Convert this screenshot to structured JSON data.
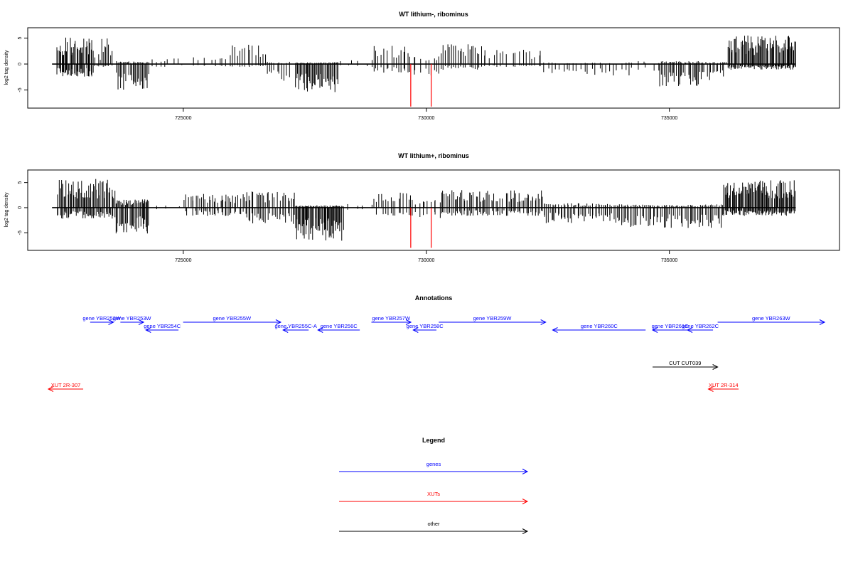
{
  "chart_data": [
    {
      "type": "bar",
      "title": "WT lithium-, ribominus",
      "xlabel": "",
      "ylabel": "log2 tag density",
      "xlim": [
        721800,
        738500
      ],
      "ylim": [
        -8.5,
        7.0
      ],
      "xticks": [
        725000,
        730000,
        735000
      ],
      "yticks": [
        -5,
        0,
        5
      ],
      "grid": false,
      "baseline": {
        "from": 722300,
        "to": 737600
      },
      "highlight_color": "#ff0000",
      "highlights": [
        {
          "x": 729680,
          "y": -8.2
        },
        {
          "x": 730100,
          "y": -8.2
        }
      ],
      "density_profile": [
        {
          "x0": 722400,
          "x1": 723150,
          "pos": 4.8,
          "neg": 2.2,
          "n": 40
        },
        {
          "x0": 723150,
          "x1": 723300,
          "pos": 2.0,
          "neg": 0.5,
          "n": 5
        },
        {
          "x0": 723300,
          "x1": 723550,
          "pos": 4.5,
          "neg": 0.5,
          "n": 8
        },
        {
          "x0": 723600,
          "x1": 724300,
          "pos": 0.5,
          "neg": 4.5,
          "n": 28
        },
        {
          "x0": 724300,
          "x1": 725000,
          "pos": 1.0,
          "neg": 0.5,
          "n": 8
        },
        {
          "x0": 725200,
          "x1": 726000,
          "pos": 2.0,
          "neg": 0.4,
          "n": 10
        },
        {
          "x0": 726000,
          "x1": 726700,
          "pos": 3.5,
          "neg": 0.5,
          "n": 14
        },
        {
          "x0": 726700,
          "x1": 727200,
          "pos": 0.4,
          "neg": 3.0,
          "n": 10
        },
        {
          "x0": 727300,
          "x1": 728200,
          "pos": 0.3,
          "neg": 5.0,
          "n": 44
        },
        {
          "x0": 728200,
          "x1": 728900,
          "pos": 0.8,
          "neg": 0.5,
          "n": 6
        },
        {
          "x0": 728900,
          "x1": 729700,
          "pos": 3.2,
          "neg": 1.5,
          "n": 16
        },
        {
          "x0": 729700,
          "x1": 730300,
          "pos": 1.5,
          "neg": 2.0,
          "n": 10
        },
        {
          "x0": 730300,
          "x1": 731200,
          "pos": 3.5,
          "neg": 1.0,
          "n": 22
        },
        {
          "x0": 731200,
          "x1": 732400,
          "pos": 2.8,
          "neg": 0.5,
          "n": 20
        },
        {
          "x0": 732400,
          "x1": 734200,
          "pos": 0.3,
          "neg": 2.0,
          "n": 24
        },
        {
          "x0": 734200,
          "x1": 734800,
          "pos": 0.5,
          "neg": 1.2,
          "n": 6
        },
        {
          "x0": 734800,
          "x1": 735700,
          "pos": 0.5,
          "neg": 4.0,
          "n": 34
        },
        {
          "x0": 735700,
          "x1": 736200,
          "pos": 0.4,
          "neg": 2.8,
          "n": 14
        },
        {
          "x0": 736200,
          "x1": 737600,
          "pos": 5.0,
          "neg": 1.0,
          "n": 80
        }
      ]
    },
    {
      "type": "bar",
      "title": "WT lithium+, ribominus",
      "xlabel": "",
      "ylabel": "log2 tag density",
      "xlim": [
        721800,
        738500
      ],
      "ylim": [
        -8.5,
        7.5
      ],
      "xticks": [
        725000,
        730000,
        735000
      ],
      "yticks": [
        -5,
        0,
        5
      ],
      "grid": false,
      "baseline": {
        "from": 722300,
        "to": 737600
      },
      "highlight_color": "#ff0000",
      "highlights": [
        {
          "x": 729680,
          "y": -8.0
        },
        {
          "x": 730100,
          "y": -8.0
        }
      ],
      "density_profile": [
        {
          "x0": 722400,
          "x1": 723600,
          "pos": 5.2,
          "neg": 2.0,
          "n": 60
        },
        {
          "x0": 723600,
          "x1": 724300,
          "pos": 1.5,
          "neg": 4.8,
          "n": 36
        },
        {
          "x0": 724300,
          "x1": 725000,
          "pos": 0.5,
          "neg": 0.3,
          "n": 3
        },
        {
          "x0": 725000,
          "x1": 726300,
          "pos": 2.6,
          "neg": 1.5,
          "n": 40
        },
        {
          "x0": 726300,
          "x1": 727300,
          "pos": 3.0,
          "neg": 3.0,
          "n": 32
        },
        {
          "x0": 727300,
          "x1": 728300,
          "pos": 0.4,
          "neg": 6.0,
          "n": 60
        },
        {
          "x0": 728300,
          "x1": 728900,
          "pos": 1.0,
          "neg": 0.4,
          "n": 4
        },
        {
          "x0": 728900,
          "x1": 729700,
          "pos": 2.8,
          "neg": 1.5,
          "n": 16
        },
        {
          "x0": 729700,
          "x1": 730300,
          "pos": 1.5,
          "neg": 2.0,
          "n": 10
        },
        {
          "x0": 730300,
          "x1": 732400,
          "pos": 3.2,
          "neg": 1.5,
          "n": 70
        },
        {
          "x0": 732400,
          "x1": 734000,
          "pos": 0.8,
          "neg": 2.8,
          "n": 50
        },
        {
          "x0": 734000,
          "x1": 736100,
          "pos": 0.6,
          "neg": 3.8,
          "n": 70
        },
        {
          "x0": 736100,
          "x1": 737600,
          "pos": 5.0,
          "neg": 1.5,
          "n": 90
        }
      ]
    }
  ],
  "annotations": {
    "title": "Annotations",
    "xlim": [
      721800,
      738500
    ],
    "features": [
      {
        "label": "gene YBR252W",
        "color": "#0000ff",
        "start": 722700,
        "end": 723200,
        "strand": "+",
        "row": 0
      },
      {
        "label": "gene YBR253W",
        "color": "#0000ff",
        "start": 723350,
        "end": 723850,
        "strand": "+",
        "row": 0
      },
      {
        "label": "gene YBR254C",
        "color": "#0000ff",
        "start": 723900,
        "end": 724600,
        "strand": "-",
        "row": 1
      },
      {
        "label": "gene YBR255W",
        "color": "#0000ff",
        "start": 724700,
        "end": 726800,
        "strand": "+",
        "row": 0
      },
      {
        "label": "gene YBR255C-A",
        "color": "#0000ff",
        "start": 726850,
        "end": 727400,
        "strand": "-",
        "row": 1
      },
      {
        "label": "gene YBR256C",
        "color": "#0000ff",
        "start": 727600,
        "end": 728500,
        "strand": "-",
        "row": 1
      },
      {
        "label": "gene YBR257W",
        "color": "#0000ff",
        "start": 728750,
        "end": 729600,
        "strand": "+",
        "row": 0
      },
      {
        "label": "gene YBR258C",
        "color": "#0000ff",
        "start": 729650,
        "end": 730150,
        "strand": "-",
        "row": 1
      },
      {
        "label": "gene YBR259W",
        "color": "#0000ff",
        "start": 730200,
        "end": 732500,
        "strand": "+",
        "row": 0
      },
      {
        "label": "gene YBR260C",
        "color": "#0000ff",
        "start": 732650,
        "end": 734650,
        "strand": "-",
        "row": 1
      },
      {
        "label": "gene YBR261C",
        "color": "#0000ff",
        "start": 734800,
        "end": 735550,
        "strand": "-",
        "row": 1
      },
      {
        "label": "gene YBR262C",
        "color": "#0000ff",
        "start": 735550,
        "end": 736100,
        "strand": "-",
        "row": 1
      },
      {
        "label": "gene YBR263W",
        "color": "#0000ff",
        "start": 736200,
        "end": 738500,
        "strand": "+",
        "row": 0
      },
      {
        "label": "CUT CUT039",
        "color": "#000000",
        "start": 734800,
        "end": 736200,
        "strand": "+",
        "row": 3
      },
      {
        "label": "XUT 2R-307",
        "color": "#ff0000",
        "start": 721800,
        "end": 722550,
        "strand": "-",
        "row": 4
      },
      {
        "label": "XUT 2R-314",
        "color": "#ff0000",
        "start": 736000,
        "end": 736650,
        "strand": "-",
        "row": 4
      }
    ]
  },
  "legend": {
    "title": "Legend",
    "items": [
      {
        "label": "genes",
        "color": "#0000ff"
      },
      {
        "label": "XUTs",
        "color": "#ff0000"
      },
      {
        "label": "other",
        "color": "#000000"
      }
    ]
  }
}
